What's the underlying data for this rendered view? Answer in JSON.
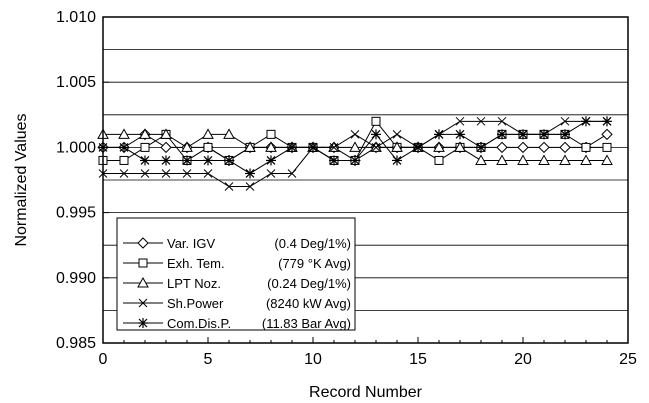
{
  "chart_data": {
    "type": "line",
    "xlabel": "Record Number",
    "ylabel": "Normalized Values",
    "xlim": [
      0,
      25
    ],
    "ylim": [
      0.985,
      1.01
    ],
    "x_ticks": [
      0,
      5,
      10,
      15,
      20,
      25
    ],
    "y_ticks": [
      0.985,
      0.99,
      0.995,
      1.0,
      1.005,
      1.01
    ],
    "x_tick_labels": [
      "0",
      "5",
      "10",
      "15",
      "20",
      "25"
    ],
    "y_tick_labels": [
      "0.985",
      "0.990",
      "0.995",
      "1.000",
      "1.005",
      "1.010"
    ],
    "grid": "horizontal",
    "legend_position": "bottom-left",
    "x": [
      0,
      1,
      2,
      3,
      4,
      5,
      6,
      7,
      8,
      9,
      10,
      11,
      12,
      13,
      14,
      15,
      16,
      17,
      18,
      19,
      20,
      21,
      22,
      23,
      24
    ],
    "series": [
      {
        "name": "Var. IGV",
        "note": "(0.4 Deg/1%)",
        "marker": "diamond",
        "values": [
          1.0,
          1.0,
          1.001,
          1.0,
          1.0,
          1.0,
          0.999,
          1.0,
          1.0,
          1.0,
          1.0,
          1.0,
          0.999,
          1.0,
          1.0,
          1.0,
          1.0,
          1.0,
          1.0,
          1.0,
          1.0,
          1.0,
          1.0,
          1.0,
          1.001
        ]
      },
      {
        "name": "Exh. Tem.",
        "note": "(779 °K Avg)",
        "marker": "square",
        "values": [
          0.999,
          0.999,
          1.0,
          1.001,
          0.999,
          1.0,
          0.999,
          1.0,
          1.001,
          1.0,
          1.0,
          0.999,
          0.999,
          1.002,
          1.0,
          1.0,
          0.999,
          1.0,
          1.0,
          1.001,
          1.001,
          1.001,
          1.001,
          1.0,
          1.0
        ]
      },
      {
        "name": "LPT Noz.",
        "note": "(0.24 Deg/1%)",
        "marker": "triangle",
        "values": [
          1.001,
          1.001,
          1.001,
          1.001,
          1.0,
          1.001,
          1.001,
          1.0,
          1.0,
          1.0,
          1.0,
          1.0,
          1.0,
          1.0,
          1.0,
          1.0,
          1.0,
          1.0,
          0.999,
          0.999,
          0.999,
          0.999,
          0.999,
          0.999,
          0.999
        ]
      },
      {
        "name": "Sh.Power",
        "note": "(8240 kW Avg)",
        "marker": "x",
        "values": [
          0.998,
          0.998,
          0.998,
          0.998,
          0.998,
          0.998,
          0.997,
          0.997,
          0.998,
          0.998,
          1.0,
          1.0,
          1.001,
          1.0,
          1.001,
          1.0,
          1.001,
          1.002,
          1.002,
          1.002,
          1.001,
          1.001,
          1.002,
          1.002,
          1.002
        ]
      },
      {
        "name": "Com.Dis.P.",
        "note": "(11.83 Bar Avg)",
        "marker": "star",
        "values": [
          1.0,
          1.0,
          0.999,
          0.999,
          0.999,
          0.999,
          0.999,
          0.998,
          0.999,
          1.0,
          1.0,
          0.999,
          0.999,
          1.001,
          0.999,
          1.0,
          1.001,
          1.001,
          1.0,
          1.001,
          1.001,
          1.001,
          1.001,
          1.002,
          1.002
        ]
      }
    ]
  }
}
